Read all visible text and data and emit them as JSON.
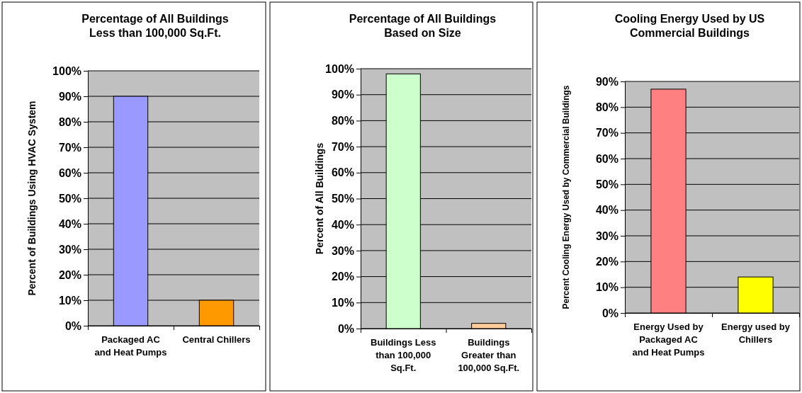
{
  "chart_data": [
    {
      "type": "bar",
      "title": "Percentage of All Buildings Less than 100,000 Sq.Ft.",
      "ylabel": "Percent of Buildings Using HVAC System",
      "categories": [
        "Packaged AC and Heat Pumps",
        "Central Chillers"
      ],
      "values": [
        90,
        10
      ],
      "colors": [
        "#9999ff",
        "#ff9900"
      ],
      "ylim": [
        0,
        100
      ],
      "yticks": [
        {
          "value": 0,
          "label": "0%"
        },
        {
          "value": 10,
          "label": "10%"
        },
        {
          "value": 20,
          "label": "20%"
        },
        {
          "value": 30,
          "label": "30%"
        },
        {
          "value": 40,
          "label": "40%"
        },
        {
          "value": 50,
          "label": "50%"
        },
        {
          "value": 60,
          "label": "60%"
        },
        {
          "value": 70,
          "label": "70%"
        },
        {
          "value": 80,
          "label": "80%"
        },
        {
          "value": 90,
          "label": "90%"
        },
        {
          "value": 100,
          "label": "100%"
        }
      ],
      "grid": "y"
    },
    {
      "type": "bar",
      "title": "Percentage of All Buildings Based on Size",
      "ylabel": "Percent of All Buildings",
      "categories": [
        "Buildings Less than 100,000 Sq.Ft.",
        "Buildings Greater than 100,000 Sq.Ft."
      ],
      "values": [
        98,
        2
      ],
      "colors": [
        "#ccffcc",
        "#ffcc99"
      ],
      "ylim": [
        0,
        100
      ],
      "yticks": [
        {
          "value": 0,
          "label": "0%"
        },
        {
          "value": 10,
          "label": "10%"
        },
        {
          "value": 20,
          "label": "20%"
        },
        {
          "value": 30,
          "label": "30%"
        },
        {
          "value": 40,
          "label": "40%"
        },
        {
          "value": 50,
          "label": "50%"
        },
        {
          "value": 60,
          "label": "60%"
        },
        {
          "value": 70,
          "label": "70%"
        },
        {
          "value": 80,
          "label": "80%"
        },
        {
          "value": 90,
          "label": "90%"
        },
        {
          "value": 100,
          "label": "100%"
        }
      ],
      "grid": "y"
    },
    {
      "type": "bar",
      "title": "Cooling Energy Used by US Commercial Buildings",
      "ylabel": "Percent Cooling Energy Used by Commercial Buildings",
      "categories": [
        "Energy Used by Packaged AC and Heat Pumps",
        "Energy used by Chillers"
      ],
      "values": [
        87,
        14
      ],
      "colors": [
        "#ff8080",
        "#ffff00"
      ],
      "ylim": [
        0,
        90
      ],
      "yticks": [
        {
          "value": 0,
          "label": "0%"
        },
        {
          "value": 10,
          "label": "10%"
        },
        {
          "value": 20,
          "label": "20%"
        },
        {
          "value": 30,
          "label": "30%"
        },
        {
          "value": 40,
          "label": "40%"
        },
        {
          "value": 50,
          "label": "50%"
        },
        {
          "value": 60,
          "label": "60%"
        },
        {
          "value": 70,
          "label": "70%"
        },
        {
          "value": 80,
          "label": "80%"
        },
        {
          "value": 90,
          "label": "90%"
        }
      ],
      "grid": "y"
    }
  ]
}
